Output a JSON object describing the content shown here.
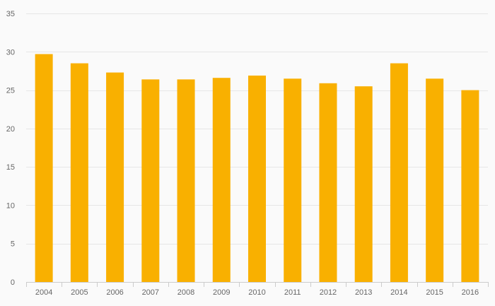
{
  "chart_data": {
    "type": "bar",
    "title": "",
    "xlabel": "",
    "ylabel": "",
    "categories": [
      "2004",
      "2005",
      "2006",
      "2007",
      "2008",
      "2009",
      "2010",
      "2011",
      "2012",
      "2013",
      "2014",
      "2015",
      "2016"
    ],
    "values": [
      29.7,
      28.5,
      27.3,
      26.4,
      26.4,
      26.6,
      26.9,
      26.5,
      25.9,
      25.5,
      28.5,
      26.5,
      25.0
    ],
    "ylim": [
      0,
      35
    ],
    "yticks": [
      "0",
      "5",
      "10",
      "15",
      "20",
      "25",
      "30",
      "35"
    ],
    "grid": true,
    "legend": "none",
    "colors": {
      "bar": "#f9b000",
      "grid": "#e6e6e6",
      "axis": "#cccccc",
      "tick_text": "#666666",
      "background": "#fafafa"
    }
  }
}
